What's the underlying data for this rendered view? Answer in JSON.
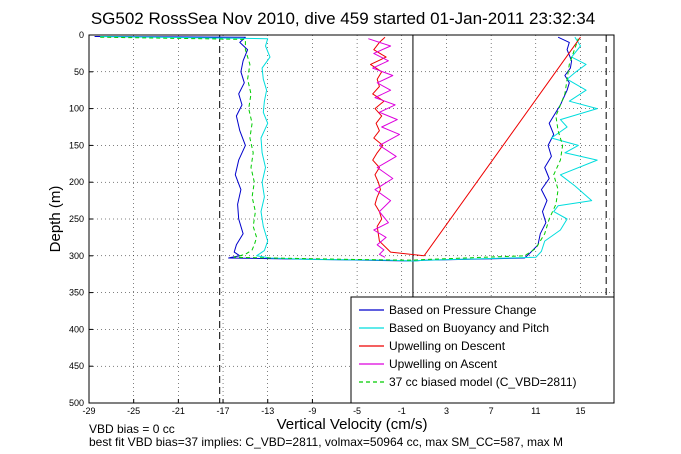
{
  "chart_data": {
    "type": "line",
    "title": "SG502 RossSea Nov 2010, dive 459 started 01-Jan-2011 23:32:34",
    "xlabel": "Vertical Velocity (cm/s)",
    "ylabel": "Depth (m)",
    "xlim": [
      -29,
      18
    ],
    "ylim": [
      500,
      0
    ],
    "y_reversed": true,
    "grid": true,
    "x_ticks": [
      "-29",
      "-25",
      "-21",
      "-17",
      "-13",
      "-9",
      "-5",
      "-1",
      "3",
      "7",
      "11",
      "15"
    ],
    "y_ticks": [
      "0",
      "50",
      "100",
      "150",
      "200",
      "250",
      "300",
      "350",
      "400",
      "450",
      "500"
    ],
    "reference_lines": [
      {
        "style": "dashed",
        "orientation": "vertical",
        "x": -17.3
      },
      {
        "style": "dashed",
        "orientation": "vertical",
        "x": 17.3
      },
      {
        "style": "solid",
        "orientation": "vertical",
        "x": 0
      },
      {
        "style": "solid",
        "orientation": "horizontal",
        "y": 0
      }
    ],
    "legend": {
      "position": "bottom-right",
      "entries": [
        {
          "label": "Based on Pressure Change",
          "color": "#0000cc",
          "style": "solid"
        },
        {
          "label": "Based on Buoyancy and Pitch",
          "color": "#00dddd",
          "style": "solid"
        },
        {
          "label": "Upwelling on Descent",
          "color": "#ee0000",
          "style": "solid"
        },
        {
          "label": "Upwelling on Ascent",
          "color": "#dd00dd",
          "style": "solid"
        },
        {
          "label": "37 cc biased model (C_VBD=2811)",
          "color": "#00cc00",
          "style": "dashed"
        }
      ]
    },
    "series": [
      {
        "name": "Based on Pressure Change",
        "color": "#0000cc",
        "x": [
          -28.5,
          -15,
          -15.5,
          -14.8,
          -15.2,
          -15.4,
          -15.1,
          -15.6,
          -15.3,
          -15.8,
          -15.5,
          -15.0,
          -15.6,
          -15.9,
          -15.4,
          -15.7,
          -15.6,
          -15.2,
          -15.8,
          -16.0,
          -15.5,
          -16.2,
          -16.5,
          -8,
          0,
          1,
          10,
          10.5,
          11.2,
          11.4,
          11.9,
          11.6,
          12.0,
          11.5,
          12.2,
          11.8,
          12.4,
          12.1,
          12.6,
          12.2,
          12.8,
          13.2,
          13.5,
          13.8,
          14.0,
          13.6,
          14.1,
          14.2,
          13.8,
          14.0,
          13.0
        ],
        "y": [
          2,
          3,
          10,
          20,
          35,
          50,
          65,
          80,
          95,
          110,
          130,
          150,
          170,
          190,
          210,
          230,
          250,
          270,
          285,
          295,
          300,
          302,
          303,
          305,
          307,
          306,
          303,
          296,
          285,
          270,
          255,
          240,
          225,
          210,
          195,
          180,
          165,
          150,
          135,
          120,
          105,
          95,
          85,
          75,
          65,
          55,
          45,
          35,
          20,
          10,
          3
        ]
      },
      {
        "name": "Based on Buoyancy and Pitch",
        "color": "#00dddd",
        "x": [
          -28,
          -13,
          -13.2,
          -12.8,
          -13.5,
          -13.4,
          -13.1,
          -13.3,
          -13.4,
          -13.0,
          -13.6,
          -13.5,
          -13.2,
          -13.5,
          -13.3,
          -13.6,
          -13.4,
          -13.0,
          -13.3,
          -14.0,
          -12.8,
          -9,
          -2,
          0,
          1,
          11,
          11.5,
          11.8,
          13.2,
          13.8,
          12.6,
          13.0,
          16.0,
          14.5,
          13.2,
          16.5,
          13.6,
          14.8,
          12.4,
          13.8,
          13.2,
          16.5,
          14.0,
          15.5,
          13.8,
          14.6,
          15.5,
          14.2,
          15.0,
          14.5
        ],
        "y": [
          2,
          5,
          15,
          30,
          45,
          60,
          75,
          90,
          105,
          120,
          140,
          160,
          180,
          200,
          220,
          240,
          260,
          280,
          293,
          300,
          303,
          305,
          306,
          307,
          306,
          302,
          294,
          280,
          265,
          250,
          240,
          232,
          225,
          205,
          190,
          170,
          160,
          150,
          140,
          125,
          115,
          100,
          90,
          75,
          60,
          50,
          40,
          30,
          15,
          3
        ]
      },
      {
        "name": "Upwelling on Descent",
        "color": "#ee0000",
        "x": [
          -2.5,
          -3.0,
          -3.5,
          -2.4,
          -3.8,
          -2.8,
          -3.2,
          -3.0,
          -3.6,
          -2.6,
          -3.4,
          -2.8,
          -3.3,
          -3.0,
          -3.5,
          -2.7,
          -3.2,
          -3.6,
          -3.0,
          -3.4,
          -3.1,
          -2.9,
          -3.2,
          -3.4,
          -3.0,
          -2.8,
          -3.2,
          -3.0,
          -2.0,
          1,
          15
        ],
        "y": [
          3,
          10,
          20,
          30,
          40,
          50,
          60,
          70,
          80,
          90,
          100,
          110,
          120,
          130,
          140,
          150,
          160,
          170,
          180,
          190,
          200,
          210,
          220,
          230,
          240,
          250,
          260,
          280,
          295,
          300,
          3
        ]
      },
      {
        "name": "Upwelling on Ascent",
        "color": "#dd00dd",
        "x": [
          -4.0,
          -2.0,
          -3.5,
          -2.2,
          -3.6,
          -1.8,
          -3.2,
          -2.0,
          -3.4,
          -1.6,
          -3.0,
          -1.4,
          -2.8,
          -1.2,
          -3.0,
          -1.5,
          -3.2,
          -1.8,
          -3.4,
          -2.0,
          -3.0,
          -2.2,
          -3.5,
          -2.4,
          -3.2,
          -2.6,
          -3.0,
          -2.5
        ],
        "y": [
          5,
          15,
          25,
          35,
          45,
          55,
          65,
          75,
          85,
          95,
          105,
          115,
          125,
          135,
          150,
          165,
          180,
          195,
          210,
          225,
          240,
          255,
          265,
          275,
          285,
          292,
          298,
          302
        ]
      },
      {
        "name": "37 cc biased model (C_VBD=2811)",
        "color": "#00cc00",
        "dashed": true,
        "x": [
          -28,
          -15,
          -15.0,
          -14.6,
          -14.8,
          -14.5,
          -14.7,
          -14.4,
          -14.6,
          -14.3,
          -14.5,
          -14.2,
          -14.4,
          -14.1,
          -14.3,
          -14.0,
          -14.2,
          -14.4,
          -15.0,
          -16.0,
          -5,
          0,
          1,
          10,
          11.0,
          11.8,
          12.2,
          12.8,
          13.0,
          12.6,
          13.2,
          13.4,
          13.0,
          12.8,
          13.6,
          14.0,
          14.8
        ],
        "y": [
          3,
          6,
          20,
          40,
          60,
          80,
          100,
          120,
          140,
          160,
          180,
          200,
          220,
          240,
          260,
          275,
          285,
          292,
          298,
          302,
          305,
          306,
          305,
          300,
          290,
          270,
          250,
          230,
          210,
          190,
          170,
          150,
          130,
          110,
          80,
          40,
          5
        ]
      }
    ]
  },
  "footer": {
    "line1": "VBD bias = 0 cc",
    "line2": "best fit VBD bias=37 implies: C_VBD=2811, volmax=50964 cc, max SM_CC=587, max M"
  }
}
